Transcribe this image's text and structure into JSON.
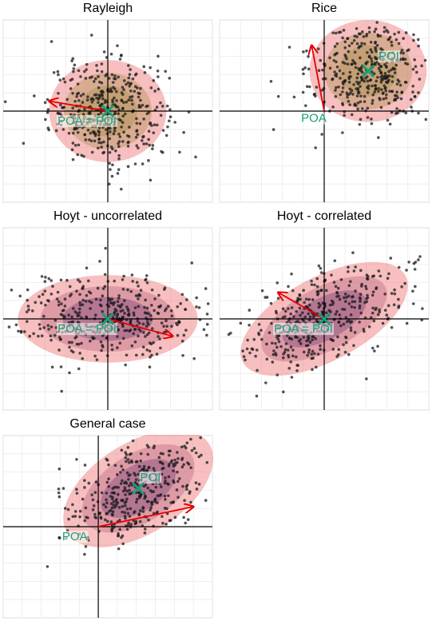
{
  "colors": {
    "point": "#1a1a1a",
    "arrow": "#e60000",
    "marker": "#1b9e77",
    "outer_ellipse": "#f08080",
    "mid_ellipse": "#b05a78",
    "inner_ellipse": "#6b3070",
    "rayleigh_tint": "#a08a40",
    "grid": "#ebebeb",
    "frame": "#b3b3b3"
  },
  "chart_data": [
    {
      "type": "scatter",
      "title": "Rayleigh",
      "xlim": [
        -5,
        5
      ],
      "ylim": [
        -5,
        5
      ],
      "grid": true,
      "axes_lines_at": [
        0,
        0
      ],
      "poa": [
        0,
        0
      ],
      "poi": [
        0,
        0
      ],
      "ellipse": {
        "center": [
          0,
          0
        ],
        "rx": 2.8,
        "ry": 2.8,
        "angle": 0
      },
      "arrow": {
        "from": [
          0,
          0
        ],
        "to": [
          -2.8,
          0.55
        ]
      },
      "labels": [
        {
          "text": "POA = POI",
          "at": [
            -2.4,
            -0.75
          ]
        }
      ],
      "n_points": 400
    },
    {
      "type": "scatter",
      "title": "Rice",
      "xlim": [
        -5,
        5
      ],
      "ylim": [
        -5,
        5
      ],
      "grid": true,
      "axes_lines_at": [
        0,
        0
      ],
      "poa": [
        0,
        0
      ],
      "poi": [
        2.1,
        2.2
      ],
      "ellipse": {
        "center": [
          2.1,
          2.2
        ],
        "rx": 2.8,
        "ry": 2.8,
        "angle": 0
      },
      "arrow": {
        "from": [
          0,
          0
        ],
        "to": [
          -0.6,
          3.6
        ]
      },
      "labels": [
        {
          "text": "POI",
          "at": [
            2.6,
            2.8
          ]
        },
        {
          "text": "POA",
          "at": [
            -1.1,
            -0.6
          ]
        }
      ],
      "n_points": 400
    },
    {
      "type": "scatter",
      "title": "Hoyt - uncorrelated",
      "xlim": [
        -5,
        5
      ],
      "ylim": [
        -5,
        5
      ],
      "grid": true,
      "axes_lines_at": [
        0,
        0
      ],
      "poa": [
        0,
        0
      ],
      "poi": [
        0,
        0
      ],
      "ellipse": {
        "center": [
          0,
          0
        ],
        "rx": 4.3,
        "ry": 2.4,
        "angle": 0
      },
      "arrow": {
        "from": [
          0,
          0
        ],
        "to": [
          3.1,
          -0.95
        ]
      },
      "labels": [
        {
          "text": "POA = POI",
          "at": [
            -2.4,
            -0.75
          ]
        }
      ],
      "n_points": 400
    },
    {
      "type": "scatter",
      "title": "Hoyt - correlated",
      "xlim": [
        -5,
        5
      ],
      "ylim": [
        -5,
        5
      ],
      "grid": true,
      "axes_lines_at": [
        0,
        0
      ],
      "poa": [
        0,
        0
      ],
      "poi": [
        0,
        0
      ],
      "ellipse": {
        "center": [
          0,
          0
        ],
        "rx": 4.4,
        "ry": 2.3,
        "angle": 28
      },
      "arrow": {
        "from": [
          0,
          0
        ],
        "to": [
          -2.2,
          1.45
        ]
      },
      "labels": [
        {
          "text": "POA = POI",
          "at": [
            -2.4,
            -0.75
          ]
        }
      ],
      "n_points": 400
    },
    {
      "type": "scatter",
      "title": "General case",
      "xlim": [
        -5,
        6
      ],
      "ylim": [
        -5,
        5
      ],
      "grid": true,
      "axes_lines_at": [
        0,
        0
      ],
      "poa": [
        0,
        0
      ],
      "poi": [
        2.1,
        2.1
      ],
      "ellipse": {
        "center": [
          2.1,
          2.1
        ],
        "rx": 4.4,
        "ry": 2.5,
        "angle": 32
      },
      "arrow": {
        "from": [
          0,
          0
        ],
        "to": [
          5.0,
          1.1
        ]
      },
      "labels": [
        {
          "text": "POI",
          "at": [
            2.2,
            2.5
          ]
        },
        {
          "text": "POA",
          "at": [
            -1.9,
            -0.75
          ]
        }
      ],
      "n_points": 400
    }
  ]
}
